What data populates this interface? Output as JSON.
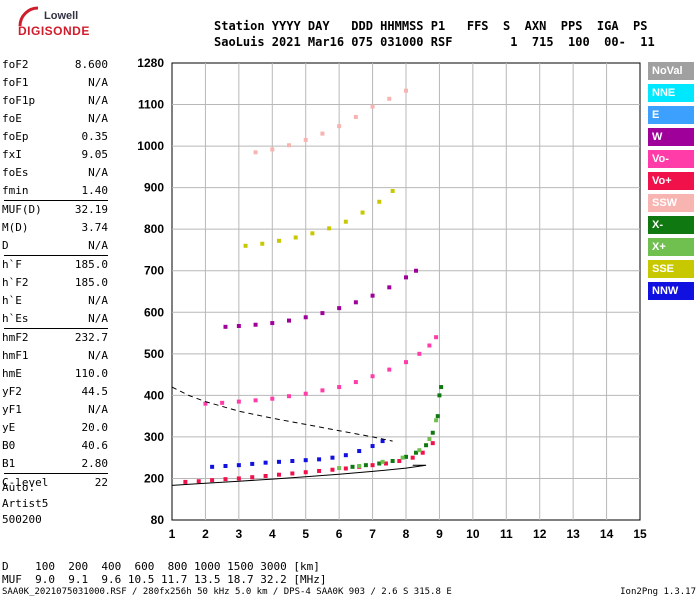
{
  "logo": {
    "line1": "Lowell",
    "line2": "DIGISONDE"
  },
  "header": {
    "line1": "Station YYYY DAY   DDD HHMMSS P1   FFS  S  AXN  PPS  IGA  PS",
    "line2": "SaoLuis 2021 Mar16 075 031000 RSF        1  715  100  00-  11"
  },
  "params": {
    "group1": [
      {
        "key": "foF2",
        "value": "8.600"
      },
      {
        "key": "foF1",
        "value": "N/A"
      },
      {
        "key": "foF1p",
        "value": "N/A"
      },
      {
        "key": "foE",
        "value": "N/A"
      },
      {
        "key": "foEp",
        "value": "0.35"
      },
      {
        "key": "fxI",
        "value": "9.05"
      },
      {
        "key": "foEs",
        "value": "N/A"
      },
      {
        "key": "fmin",
        "value": "1.40"
      }
    ],
    "group2": [
      {
        "key": "MUF(D)",
        "value": "32.19"
      },
      {
        "key": "M(D)",
        "value": "3.74"
      },
      {
        "key": "D",
        "value": "N/A"
      }
    ],
    "group3": [
      {
        "key": "h`F",
        "value": "185.0"
      },
      {
        "key": "h`F2",
        "value": "185.0"
      },
      {
        "key": "h`E",
        "value": "N/A"
      },
      {
        "key": "h`Es",
        "value": "N/A"
      }
    ],
    "group4": [
      {
        "key": "hmF2",
        "value": "232.7"
      },
      {
        "key": "hmF1",
        "value": "N/A"
      },
      {
        "key": "hmE",
        "value": "110.0"
      },
      {
        "key": "yF2",
        "value": "44.5"
      },
      {
        "key": "yF1",
        "value": "N/A"
      },
      {
        "key": "yE",
        "value": "20.0"
      },
      {
        "key": "B0",
        "value": "40.6"
      },
      {
        "key": "B1",
        "value": "2.80"
      }
    ],
    "group5": [
      {
        "key": "C-level",
        "value": "22"
      }
    ]
  },
  "auto": {
    "line1": "Auto:",
    "line2": "Artist5",
    "line3": "500200"
  },
  "legend": [
    {
      "label": "NoVal",
      "color": "#a0a0a0"
    },
    {
      "label": "NNE",
      "color": "#00e8ff"
    },
    {
      "label": "E",
      "color": "#3ca0ff"
    },
    {
      "label": "W",
      "color": "#a0009a"
    },
    {
      "label": "Vo-",
      "color": "#ff3ca8"
    },
    {
      "label": "Vo+",
      "color": "#f0104a"
    },
    {
      "label": "SSW",
      "color": "#f8b4b0"
    },
    {
      "label": "X-",
      "color": "#107810"
    },
    {
      "label": "X+",
      "color": "#70c050"
    },
    {
      "label": "SSE",
      "color": "#c8c800"
    },
    {
      "label": "NNW",
      "color": "#1010e0"
    }
  ],
  "chart_data": {
    "type": "scatter",
    "xlim": [
      1,
      15
    ],
    "x_ticks": [
      "1",
      "2",
      "3",
      "4",
      "5",
      "6",
      "7",
      "8",
      "9",
      "10",
      "11",
      "12",
      "13",
      "14",
      "15"
    ],
    "y_ticks": [
      "80",
      "200",
      "300",
      "400",
      "500",
      "600",
      "700",
      "800",
      "900",
      "1000",
      "1100",
      "1280"
    ],
    "y_tick_values": [
      80,
      200,
      300,
      400,
      500,
      600,
      700,
      800,
      900,
      1000,
      1100,
      1280
    ],
    "ylim": [
      80,
      1280
    ],
    "grid": true,
    "series": [
      {
        "color": "#f0104a",
        "points": [
          [
            1.4,
            190
          ],
          [
            1.8,
            192
          ],
          [
            2.2,
            195
          ],
          [
            2.6,
            198
          ],
          [
            3.0,
            200
          ],
          [
            3.4,
            203
          ],
          [
            3.8,
            206
          ],
          [
            4.2,
            209
          ],
          [
            4.6,
            212
          ],
          [
            5.0,
            215
          ],
          [
            5.4,
            218
          ],
          [
            5.8,
            221
          ],
          [
            6.2,
            224
          ],
          [
            6.6,
            228
          ],
          [
            7.0,
            232
          ],
          [
            7.4,
            236
          ],
          [
            7.8,
            242
          ],
          [
            8.2,
            250
          ],
          [
            8.5,
            262
          ],
          [
            8.8,
            285
          ]
        ]
      },
      {
        "color": "#107810",
        "points": [
          [
            6.4,
            228
          ],
          [
            6.8,
            232
          ],
          [
            7.2,
            236
          ],
          [
            7.6,
            242
          ],
          [
            8.0,
            252
          ],
          [
            8.3,
            262
          ],
          [
            8.6,
            280
          ],
          [
            8.8,
            310
          ],
          [
            8.95,
            350
          ],
          [
            9.0,
            400
          ],
          [
            9.05,
            420
          ]
        ]
      },
      {
        "color": "#70c050",
        "points": [
          [
            6.0,
            225
          ],
          [
            6.6,
            230
          ],
          [
            7.3,
            240
          ],
          [
            7.9,
            250
          ],
          [
            8.4,
            268
          ],
          [
            8.7,
            295
          ],
          [
            8.9,
            340
          ]
        ]
      },
      {
        "color": "#1010e0",
        "points": [
          [
            2.2,
            228
          ],
          [
            2.6,
            230
          ],
          [
            3.0,
            232
          ],
          [
            3.4,
            235
          ],
          [
            3.8,
            238
          ],
          [
            4.2,
            240
          ],
          [
            4.6,
            242
          ],
          [
            5.0,
            244
          ],
          [
            5.4,
            246
          ],
          [
            5.8,
            250
          ],
          [
            6.2,
            256
          ],
          [
            6.6,
            266
          ],
          [
            7.0,
            278
          ],
          [
            7.3,
            290
          ]
        ]
      },
      {
        "color": "#ff3ca8",
        "points": [
          [
            2.0,
            380
          ],
          [
            2.5,
            382
          ],
          [
            3.0,
            385
          ],
          [
            3.5,
            388
          ],
          [
            4.0,
            392
          ],
          [
            4.5,
            398
          ],
          [
            5.0,
            404
          ],
          [
            5.5,
            412
          ],
          [
            6.0,
            420
          ],
          [
            6.5,
            432
          ],
          [
            7.0,
            446
          ],
          [
            7.5,
            462
          ],
          [
            8.0,
            480
          ],
          [
            8.4,
            500
          ],
          [
            8.7,
            520
          ],
          [
            8.9,
            540
          ]
        ]
      },
      {
        "color": "#a0009a",
        "points": [
          [
            2.6,
            565
          ],
          [
            3.0,
            567
          ],
          [
            3.5,
            570
          ],
          [
            4.0,
            574
          ],
          [
            4.5,
            580
          ],
          [
            5.0,
            588
          ],
          [
            5.5,
            598
          ],
          [
            6.0,
            610
          ],
          [
            6.5,
            624
          ],
          [
            7.0,
            640
          ],
          [
            7.5,
            660
          ],
          [
            8.0,
            684
          ],
          [
            8.3,
            700
          ]
        ]
      },
      {
        "color": "#c8c800",
        "points": [
          [
            3.2,
            760
          ],
          [
            3.7,
            765
          ],
          [
            4.2,
            772
          ],
          [
            4.7,
            780
          ],
          [
            5.2,
            790
          ],
          [
            5.7,
            802
          ],
          [
            6.2,
            818
          ],
          [
            6.7,
            840
          ],
          [
            7.2,
            866
          ],
          [
            7.6,
            892
          ]
        ]
      },
      {
        "color": "#f8b4b0",
        "points": [
          [
            3.5,
            985
          ],
          [
            4.0,
            992
          ],
          [
            4.5,
            1002
          ],
          [
            5.0,
            1015
          ],
          [
            5.5,
            1030
          ],
          [
            6.0,
            1048
          ],
          [
            6.5,
            1070
          ],
          [
            7.0,
            1095
          ],
          [
            7.5,
            1125
          ],
          [
            8.0,
            1160
          ]
        ]
      }
    ],
    "lines": [
      {
        "style": "solid",
        "points": [
          [
            1.0,
            180
          ],
          [
            2.0,
            186
          ],
          [
            3.0,
            192
          ],
          [
            4.0,
            198
          ],
          [
            5.0,
            204
          ],
          [
            6.0,
            210
          ],
          [
            7.0,
            217
          ],
          [
            8.0,
            225
          ],
          [
            8.6,
            232
          ],
          [
            8.2,
            232
          ]
        ]
      },
      {
        "style": "dashed",
        "points": [
          [
            1.0,
            420
          ],
          [
            1.5,
            400
          ],
          [
            2.0,
            385
          ],
          [
            3.0,
            362
          ],
          [
            4.0,
            345
          ],
          [
            5.0,
            330
          ],
          [
            6.0,
            315
          ],
          [
            7.0,
            300
          ],
          [
            7.6,
            290
          ]
        ]
      }
    ]
  },
  "dmuf": {
    "line1": "D    100  200  400  600  800 1000 1500 3000 [km]",
    "line2": "MUF  9.0  9.1  9.6 10.5 11.7 13.5 18.7 32.2 [MHz]"
  },
  "footer": "SAA0K_2021075031000.RSF / 280fx256h 50 kHz 5.0 km / DPS-4 SAA0K 903 / 2.6 S 315.8 E",
  "version": "Ion2Png 1.3.17"
}
